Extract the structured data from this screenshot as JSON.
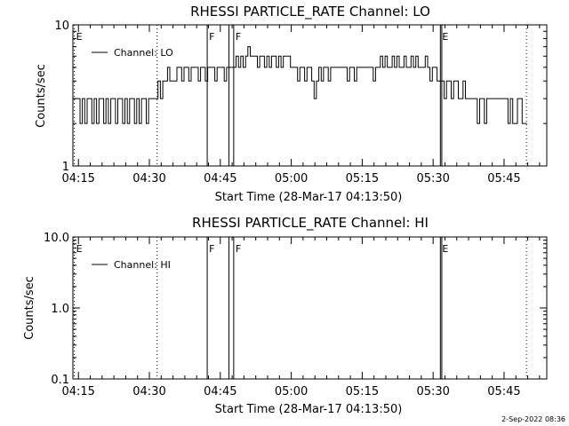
{
  "footer_timestamp": "2-Sep-2022 08:36",
  "chart_data": [
    {
      "type": "line",
      "title": "RHESSI PARTICLE_RATE Channel: LO",
      "xlabel": "Start Time (28-Mar-17 04:13:50)",
      "ylabel": "Counts/sec",
      "x_unit": "minutes since 04:13:50",
      "xlim": [
        0,
        100.2
      ],
      "ylim": [
        1,
        10
      ],
      "yscale": "log",
      "x_ticks": [
        {
          "x": 1.17,
          "label": "04:15"
        },
        {
          "x": 16.17,
          "label": "04:30"
        },
        {
          "x": 31.17,
          "label": "04:45"
        },
        {
          "x": 46.17,
          "label": "05:00"
        },
        {
          "x": 61.17,
          "label": "05:15"
        },
        {
          "x": 76.17,
          "label": "05:30"
        },
        {
          "x": 91.17,
          "label": "05:45"
        }
      ],
      "y_ticks": [
        {
          "y": 1,
          "label": "1"
        },
        {
          "y": 10,
          "label": "10"
        }
      ],
      "legend": {
        "position": "top-left",
        "entries": [
          "Channel: LO"
        ]
      },
      "markers": [
        {
          "x": 0.3,
          "label": "E",
          "style": "dotted"
        },
        {
          "x": 17.8,
          "label": "",
          "style": "dotted"
        },
        {
          "x": 28.4,
          "label": "F",
          "style": "solid"
        },
        {
          "x": 33.0,
          "label": "",
          "style": "solid"
        },
        {
          "x": 34.0,
          "label": "F",
          "style": "solid"
        },
        {
          "x": 77.7,
          "label": "E",
          "style": "solid"
        },
        {
          "x": 78.0,
          "label": "",
          "style": "solid"
        },
        {
          "x": 95.9,
          "label": "",
          "style": "dotted"
        }
      ],
      "series": [
        {
          "name": "Channel: LO",
          "x": [
            0.0,
            0.5,
            1.0,
            1.5,
            2.0,
            2.5,
            3.0,
            3.5,
            4.0,
            4.5,
            5.0,
            5.5,
            6.0,
            6.5,
            7.0,
            7.5,
            8.0,
            8.5,
            9.0,
            9.5,
            10.0,
            10.5,
            11.0,
            11.5,
            12.0,
            12.5,
            13.0,
            13.5,
            14.0,
            14.5,
            15.0,
            15.5,
            16.0,
            16.5,
            17.0,
            17.5,
            18.0,
            18.5,
            19.0,
            19.5,
            20.0,
            20.5,
            21.0,
            21.5,
            22.0,
            22.5,
            23.0,
            23.5,
            24.0,
            24.5,
            25.0,
            25.5,
            26.0,
            26.5,
            27.0,
            27.5,
            28.0,
            28.5,
            29.0,
            29.5,
            30.0,
            30.5,
            31.0,
            31.5,
            32.0,
            32.5,
            33.0,
            33.5,
            34.0,
            34.5,
            35.0,
            35.5,
            36.0,
            36.5,
            37.0,
            37.5,
            38.0,
            38.5,
            39.0,
            39.5,
            40.0,
            40.5,
            41.0,
            41.5,
            42.0,
            42.5,
            43.0,
            43.5,
            44.0,
            44.5,
            45.0,
            45.5,
            46.0,
            46.5,
            47.0,
            47.5,
            48.0,
            48.5,
            49.0,
            49.5,
            50.0,
            50.5,
            51.0,
            51.5,
            52.0,
            52.5,
            53.0,
            53.5,
            54.0,
            54.5,
            55.0,
            55.5,
            56.0,
            56.5,
            57.0,
            57.5,
            58.0,
            58.5,
            59.0,
            59.5,
            60.0,
            60.5,
            61.0,
            61.5,
            62.0,
            62.5,
            63.0,
            63.5,
            64.0,
            64.5,
            65.0,
            65.5,
            66.0,
            66.5,
            67.0,
            67.5,
            68.0,
            68.5,
            69.0,
            69.5,
            70.0,
            70.5,
            71.0,
            71.5,
            72.0,
            72.5,
            73.0,
            73.5,
            74.0,
            74.5,
            75.0,
            75.5,
            76.0,
            76.5,
            77.0,
            77.5,
            78.0,
            78.5,
            79.0,
            79.5,
            80.0,
            80.5,
            81.0,
            81.5,
            82.0,
            82.5,
            83.0,
            83.5,
            84.0,
            84.5,
            85.0,
            85.5,
            86.0,
            86.5,
            87.0,
            87.5,
            88.0,
            88.5,
            89.0,
            89.5,
            90.0,
            90.5,
            91.0,
            91.5,
            92.0,
            92.5,
            93.0,
            93.5,
            94.0,
            94.5,
            95.0,
            95.5
          ],
          "y": [
            3,
            3,
            3,
            2,
            3,
            2,
            3,
            3,
            2,
            3,
            2,
            3,
            3,
            2,
            3,
            2,
            3,
            3,
            2,
            3,
            3,
            2,
            3,
            2,
            3,
            3,
            2,
            3,
            2,
            3,
            3,
            2,
            3,
            3,
            3,
            3,
            4,
            3,
            4,
            4,
            5,
            4,
            4,
            4,
            5,
            5,
            4,
            5,
            5,
            4,
            5,
            5,
            5,
            4,
            5,
            5,
            4,
            5,
            5,
            5,
            4,
            5,
            5,
            5,
            4,
            5,
            5,
            5,
            5,
            6,
            5,
            6,
            5,
            6,
            7,
            6,
            6,
            6,
            5,
            6,
            6,
            5,
            6,
            5,
            6,
            6,
            5,
            6,
            5,
            6,
            6,
            6,
            5,
            5,
            5,
            4,
            5,
            5,
            4,
            5,
            5,
            4,
            3,
            4,
            5,
            4,
            5,
            5,
            4,
            5,
            5,
            5,
            5,
            5,
            5,
            5,
            4,
            5,
            5,
            4,
            5,
            5,
            5,
            5,
            5,
            5,
            5,
            4,
            5,
            5,
            6,
            5,
            6,
            5,
            5,
            6,
            5,
            6,
            5,
            5,
            6,
            5,
            5,
            6,
            5,
            6,
            5,
            5,
            5,
            6,
            5,
            4,
            5,
            5,
            4,
            4,
            4,
            3,
            4,
            4,
            3,
            4,
            4,
            3,
            3,
            4,
            3,
            3,
            3,
            3,
            3,
            2,
            3,
            3,
            2,
            3,
            3,
            3,
            3,
            3,
            3,
            3,
            3,
            3,
            2,
            3,
            2,
            2,
            3,
            3,
            2,
            2
          ]
        }
      ]
    },
    {
      "type": "line",
      "title": "RHESSI PARTICLE_RATE Channel: HI",
      "xlabel": "Start Time (28-Mar-17 04:13:50)",
      "ylabel": "Counts/sec",
      "x_unit": "minutes since 04:13:50",
      "xlim": [
        0,
        100.2
      ],
      "ylim": [
        0.1,
        10
      ],
      "yscale": "log",
      "x_ticks": [
        {
          "x": 1.17,
          "label": "04:15"
        },
        {
          "x": 16.17,
          "label": "04:30"
        },
        {
          "x": 31.17,
          "label": "04:45"
        },
        {
          "x": 46.17,
          "label": "05:00"
        },
        {
          "x": 61.17,
          "label": "05:15"
        },
        {
          "x": 76.17,
          "label": "05:30"
        },
        {
          "x": 91.17,
          "label": "05:45"
        }
      ],
      "y_ticks": [
        {
          "y": 0.1,
          "label": "0.1"
        },
        {
          "y": 1.0,
          "label": "1.0"
        },
        {
          "y": 10.0,
          "label": "10.0"
        }
      ],
      "legend": {
        "position": "top-left",
        "entries": [
          "Channel: HI"
        ]
      },
      "markers": [
        {
          "x": 0.3,
          "label": "E",
          "style": "dotted"
        },
        {
          "x": 17.8,
          "label": "",
          "style": "dotted"
        },
        {
          "x": 28.4,
          "label": "F",
          "style": "solid"
        },
        {
          "x": 33.0,
          "label": "",
          "style": "solid"
        },
        {
          "x": 34.0,
          "label": "F",
          "style": "solid"
        },
        {
          "x": 77.7,
          "label": "E",
          "style": "solid"
        },
        {
          "x": 78.0,
          "label": "",
          "style": "solid"
        },
        {
          "x": 95.9,
          "label": "",
          "style": "dotted"
        }
      ],
      "series": [
        {
          "name": "Channel: HI",
          "x": [],
          "y": []
        }
      ]
    }
  ]
}
